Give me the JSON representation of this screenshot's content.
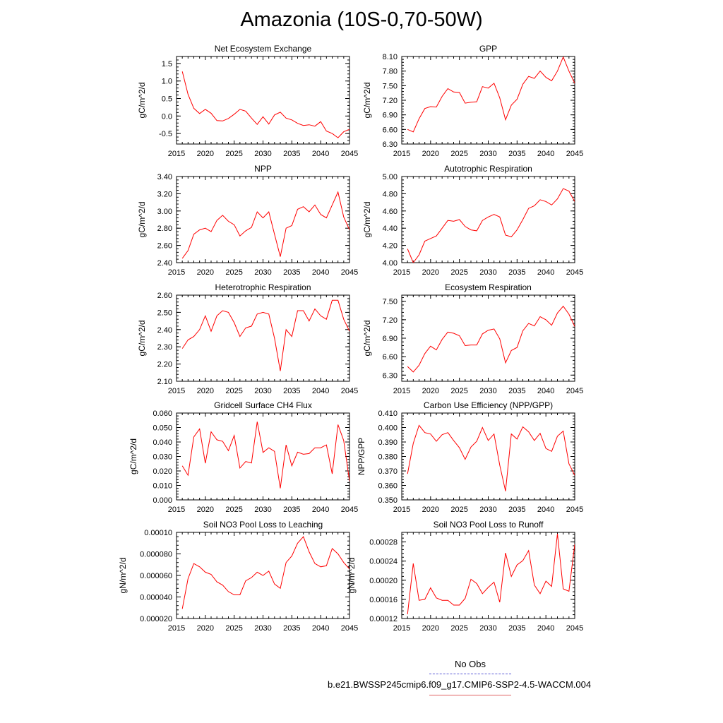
{
  "title": "Amazonia (10S-0,70-50W)",
  "legend": {
    "obs_label": "No Obs",
    "obs_color": "#5a5ad6",
    "sim_label": "b.e21.BWSSP245cmip6.f09_g17.CMIP6-SSP2-4.5-WACCM.004",
    "sim_color": "#e06060"
  },
  "line_color": "#ff0000",
  "chart_data": [
    {
      "type": "line",
      "title": "Net Ecosystem Exchange",
      "ylabel": "gC/m^2/d",
      "xlim": [
        2015,
        2045
      ],
      "ylim": [
        -0.8,
        1.7
      ],
      "xticks": [
        "2015",
        "2020",
        "2025",
        "2030",
        "2035",
        "2040",
        "2045"
      ],
      "yticks": [
        "-0.5",
        "0.0",
        "0.5",
        "1.0",
        "1.5"
      ],
      "x": [
        2016,
        2017,
        2018,
        2019,
        2020,
        2021,
        2022,
        2023,
        2024,
        2025,
        2026,
        2027,
        2028,
        2029,
        2030,
        2031,
        2032,
        2033,
        2034,
        2035,
        2036,
        2037,
        2038,
        2039,
        2040,
        2041,
        2042,
        2043,
        2044,
        2045
      ],
      "values": [
        1.27,
        0.62,
        0.22,
        0.07,
        0.19,
        0.08,
        -0.13,
        -0.14,
        -0.07,
        0.05,
        0.19,
        0.14,
        -0.06,
        -0.24,
        -0.02,
        -0.23,
        0.03,
        0.11,
        -0.06,
        -0.11,
        -0.21,
        -0.27,
        -0.25,
        -0.29,
        -0.16,
        -0.43,
        -0.5,
        -0.62,
        -0.45,
        -0.38
      ]
    },
    {
      "type": "line",
      "title": "GPP",
      "ylabel": "gC/m^2/d",
      "xlim": [
        2015,
        2045
      ],
      "ylim": [
        6.3,
        8.1
      ],
      "xticks": [
        "2015",
        "2020",
        "2025",
        "2030",
        "2035",
        "2040",
        "2045"
      ],
      "yticks": [
        "6.30",
        "6.60",
        "6.90",
        "7.20",
        "7.50",
        "7.80",
        "8.10"
      ],
      "x": [
        2016,
        2017,
        2018,
        2019,
        2020,
        2021,
        2022,
        2023,
        2024,
        2025,
        2026,
        2027,
        2028,
        2029,
        2030,
        2031,
        2032,
        2033,
        2034,
        2035,
        2036,
        2037,
        2038,
        2039,
        2040,
        2041,
        2042,
        2043,
        2044,
        2045
      ],
      "values": [
        6.6,
        6.55,
        6.82,
        7.03,
        7.07,
        7.06,
        7.28,
        7.44,
        7.37,
        7.36,
        7.14,
        7.16,
        7.17,
        7.48,
        7.45,
        7.55,
        7.25,
        6.8,
        7.1,
        7.22,
        7.53,
        7.69,
        7.65,
        7.8,
        7.67,
        7.6,
        7.8,
        8.09,
        7.8,
        7.55
      ]
    },
    {
      "type": "line",
      "title": "NPP",
      "ylabel": "gC/m^2/d",
      "xlim": [
        2015,
        2045
      ],
      "ylim": [
        2.4,
        3.4
      ],
      "xticks": [
        "2015",
        "2020",
        "2025",
        "2030",
        "2035",
        "2040",
        "2045"
      ],
      "yticks": [
        "2.40",
        "2.60",
        "2.80",
        "3.00",
        "3.20",
        "3.40"
      ],
      "x": [
        2016,
        2017,
        2018,
        2019,
        2020,
        2021,
        2022,
        2023,
        2024,
        2025,
        2026,
        2027,
        2028,
        2029,
        2030,
        2031,
        2032,
        2033,
        2034,
        2035,
        2036,
        2037,
        2038,
        2039,
        2040,
        2041,
        2042,
        2043,
        2044,
        2045
      ],
      "values": [
        2.45,
        2.54,
        2.73,
        2.78,
        2.8,
        2.76,
        2.89,
        2.95,
        2.88,
        2.84,
        2.71,
        2.77,
        2.81,
        2.99,
        2.92,
        2.99,
        2.73,
        2.47,
        2.8,
        2.83,
        3.02,
        3.05,
        2.99,
        3.07,
        2.96,
        2.92,
        3.07,
        3.22,
        2.93,
        2.78
      ]
    },
    {
      "type": "line",
      "title": "Autotrophic Respiration",
      "ylabel": "gC/m^2/d",
      "xlim": [
        2015,
        2045
      ],
      "ylim": [
        4.0,
        5.0
      ],
      "xticks": [
        "2015",
        "2020",
        "2025",
        "2030",
        "2035",
        "2040",
        "2045"
      ],
      "yticks": [
        "4.00",
        "4.20",
        "4.40",
        "4.60",
        "4.80",
        "5.00"
      ],
      "x": [
        2016,
        2017,
        2018,
        2019,
        2020,
        2021,
        2022,
        2023,
        2024,
        2025,
        2026,
        2027,
        2028,
        2029,
        2030,
        2031,
        2032,
        2033,
        2034,
        2035,
        2036,
        2037,
        2038,
        2039,
        2040,
        2041,
        2042,
        2043,
        2044,
        2045
      ],
      "values": [
        4.16,
        4.0,
        4.09,
        4.25,
        4.28,
        4.31,
        4.4,
        4.49,
        4.48,
        4.5,
        4.42,
        4.38,
        4.37,
        4.49,
        4.53,
        4.56,
        4.53,
        4.32,
        4.3,
        4.38,
        4.5,
        4.63,
        4.66,
        4.73,
        4.71,
        4.67,
        4.74,
        4.86,
        4.83,
        4.71
      ]
    },
    {
      "type": "line",
      "title": "Heterotrophic Respiration",
      "ylabel": "gC/m^2/d",
      "xlim": [
        2015,
        2045
      ],
      "ylim": [
        2.1,
        2.6
      ],
      "xticks": [
        "2015",
        "2020",
        "2025",
        "2030",
        "2035",
        "2040",
        "2045"
      ],
      "yticks": [
        "2.10",
        "2.20",
        "2.30",
        "2.40",
        "2.50",
        "2.60"
      ],
      "x": [
        2016,
        2017,
        2018,
        2019,
        2020,
        2021,
        2022,
        2023,
        2024,
        2025,
        2026,
        2027,
        2028,
        2029,
        2030,
        2031,
        2032,
        2033,
        2034,
        2035,
        2036,
        2037,
        2038,
        2039,
        2040,
        2041,
        2042,
        2043,
        2044,
        2045
      ],
      "values": [
        2.29,
        2.34,
        2.36,
        2.4,
        2.48,
        2.39,
        2.48,
        2.51,
        2.5,
        2.44,
        2.36,
        2.41,
        2.42,
        2.49,
        2.5,
        2.49,
        2.35,
        2.16,
        2.4,
        2.36,
        2.51,
        2.51,
        2.45,
        2.52,
        2.48,
        2.46,
        2.57,
        2.57,
        2.46,
        2.39
      ]
    },
    {
      "type": "line",
      "title": "Ecosystem Respiration",
      "ylabel": "gC/m^2/d",
      "xlim": [
        2015,
        2045
      ],
      "ylim": [
        6.2,
        7.6
      ],
      "xticks": [
        "2015",
        "2020",
        "2025",
        "2030",
        "2035",
        "2040",
        "2045"
      ],
      "yticks": [
        "6.30",
        "6.60",
        "6.90",
        "7.20",
        "7.50"
      ],
      "x": [
        2016,
        2017,
        2018,
        2019,
        2020,
        2021,
        2022,
        2023,
        2024,
        2025,
        2026,
        2027,
        2028,
        2029,
        2030,
        2031,
        2032,
        2033,
        2034,
        2035,
        2036,
        2037,
        2038,
        2039,
        2040,
        2041,
        2042,
        2043,
        2044,
        2045
      ],
      "values": [
        6.44,
        6.35,
        6.46,
        6.65,
        6.77,
        6.71,
        6.88,
        7.0,
        6.98,
        6.94,
        6.78,
        6.79,
        6.79,
        6.97,
        7.03,
        7.05,
        6.89,
        6.5,
        6.7,
        6.75,
        7.02,
        7.14,
        7.1,
        7.25,
        7.2,
        7.11,
        7.31,
        7.42,
        7.29,
        7.09
      ]
    },
    {
      "type": "line",
      "title": "Gridcell Surface CH4 Flux",
      "ylabel": "gC/m^2/d",
      "xlim": [
        2015,
        2045
      ],
      "ylim": [
        0.0,
        0.06
      ],
      "xticks": [
        "2015",
        "2020",
        "2025",
        "2030",
        "2035",
        "2040",
        "2045"
      ],
      "yticks": [
        "0.000",
        "0.010",
        "0.020",
        "0.030",
        "0.040",
        "0.050",
        "0.060"
      ],
      "x": [
        2016,
        2017,
        2018,
        2019,
        2020,
        2021,
        2022,
        2023,
        2024,
        2025,
        2026,
        2027,
        2028,
        2029,
        2030,
        2031,
        2032,
        2033,
        2034,
        2035,
        2036,
        2037,
        2038,
        2039,
        2040,
        2041,
        2042,
        2043,
        2044,
        2045
      ],
      "values": [
        0.0235,
        0.017,
        0.0435,
        0.049,
        0.0253,
        0.047,
        0.0415,
        0.0405,
        0.034,
        0.0445,
        0.022,
        0.0265,
        0.0255,
        0.054,
        0.0328,
        0.036,
        0.0335,
        0.008,
        0.038,
        0.0235,
        0.033,
        0.0315,
        0.032,
        0.036,
        0.036,
        0.038,
        0.018,
        0.052,
        0.041,
        0.013
      ]
    },
    {
      "type": "line",
      "title": "Carbon Use Efficiency (NPP/GPP)",
      "ylabel": "NPP/GPP",
      "xlim": [
        2015,
        2045
      ],
      "ylim": [
        0.35,
        0.41
      ],
      "xticks": [
        "2015",
        "2020",
        "2025",
        "2030",
        "2035",
        "2040",
        "2045"
      ],
      "yticks": [
        "0.350",
        "0.360",
        "0.370",
        "0.380",
        "0.390",
        "0.400",
        "0.410"
      ],
      "x": [
        2016,
        2017,
        2018,
        2019,
        2020,
        2021,
        2022,
        2023,
        2024,
        2025,
        2026,
        2027,
        2028,
        2029,
        2030,
        2031,
        2032,
        2033,
        2034,
        2035,
        2036,
        2037,
        2038,
        2039,
        2040,
        2041,
        2042,
        2043,
        2044,
        2045
      ],
      "values": [
        0.368,
        0.389,
        0.4015,
        0.3965,
        0.3955,
        0.3905,
        0.395,
        0.3965,
        0.391,
        0.386,
        0.378,
        0.3865,
        0.3905,
        0.4,
        0.391,
        0.3955,
        0.374,
        0.356,
        0.3955,
        0.392,
        0.4005,
        0.397,
        0.391,
        0.396,
        0.3855,
        0.3835,
        0.394,
        0.3975,
        0.375,
        0.367
      ]
    },
    {
      "type": "line",
      "title": "Soil NO3 Pool Loss to Leaching",
      "ylabel": "gN/m^2/d",
      "xlim": [
        2015,
        2045
      ],
      "ylim": [
        2e-05,
        0.0001
      ],
      "xticks": [
        "2015",
        "2020",
        "2025",
        "2030",
        "2035",
        "2040",
        "2045"
      ],
      "yticks": [
        "0.000020",
        "0.000040",
        "0.000060",
        "0.000080",
        "0.00010"
      ],
      "x": [
        2016,
        2017,
        2018,
        2019,
        2020,
        2021,
        2022,
        2023,
        2024,
        2025,
        2026,
        2027,
        2028,
        2029,
        2030,
        2031,
        2032,
        2033,
        2034,
        2035,
        2036,
        2037,
        2038,
        2039,
        2040,
        2041,
        2042,
        2043,
        2044,
        2045
      ],
      "values": [
        2.9e-05,
        5.7e-05,
        7.1e-05,
        6.8e-05,
        6.3e-05,
        6.1e-05,
        5.4e-05,
        5.1e-05,
        4.5e-05,
        4.2e-05,
        4.2e-05,
        5.5e-05,
        5.8e-05,
        6.3e-05,
        6e-05,
        6.4e-05,
        5.2e-05,
        4.8e-05,
        7.2e-05,
        7.8e-05,
        9e-05,
        9.6e-05,
        8.2e-05,
        7.1e-05,
        6.8e-05,
        6.9e-05,
        8.5e-05,
        8e-05,
        7.2e-05,
        6.6e-05
      ]
    },
    {
      "type": "line",
      "title": "Soil NO3 Pool Loss to Runoff",
      "ylabel": "gN/m^2/d",
      "xlim": [
        2015,
        2045
      ],
      "ylim": [
        0.00012,
        0.0003
      ],
      "xticks": [
        "2015",
        "2020",
        "2025",
        "2030",
        "2035",
        "2040",
        "2045"
      ],
      "yticks": [
        "0.00012",
        "0.00016",
        "0.00020",
        "0.00024",
        "0.00028"
      ],
      "x": [
        2016,
        2017,
        2018,
        2019,
        2020,
        2021,
        2022,
        2023,
        2024,
        2025,
        2026,
        2027,
        2028,
        2029,
        2030,
        2031,
        2032,
        2033,
        2034,
        2035,
        2036,
        2037,
        2038,
        2039,
        2040,
        2041,
        2042,
        2043,
        2044,
        2045
      ],
      "values": [
        0.000129,
        0.000235,
        0.000158,
        0.00016,
        0.000184,
        0.000163,
        0.000158,
        0.000158,
        0.000148,
        0.000148,
        0.000162,
        0.000202,
        0.000193,
        0.000172,
        0.000185,
        0.000196,
        0.000154,
        0.000257,
        0.000208,
        0.000232,
        0.000241,
        0.000262,
        0.00019,
        0.000172,
        0.000198,
        0.000187,
        0.000297,
        0.000182,
        0.000177,
        0.000275
      ]
    }
  ]
}
